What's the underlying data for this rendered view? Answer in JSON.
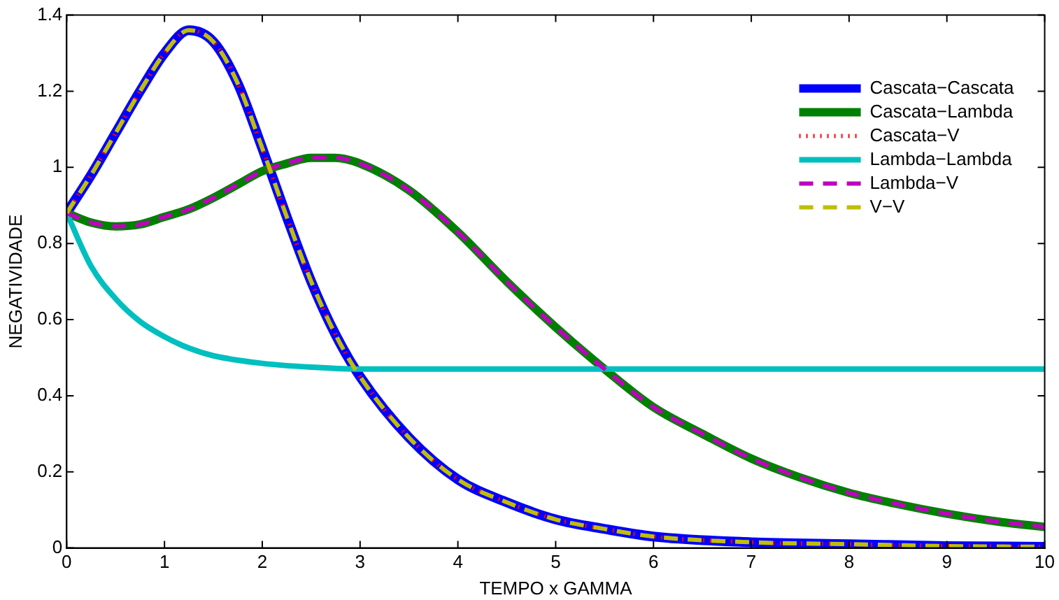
{
  "chart_data": {
    "type": "line",
    "xlabel": "TEMPO x GAMMA",
    "ylabel": "NEGATIVIDADE",
    "xlim": [
      0,
      10
    ],
    "ylim": [
      0,
      1.4
    ],
    "xticks": [
      0,
      1,
      2,
      3,
      4,
      5,
      6,
      7,
      8,
      9,
      10
    ],
    "yticks": [
      0,
      0.2,
      0.4,
      0.6,
      0.8,
      1,
      1.2,
      1.4
    ],
    "grid": false,
    "legend": "top right",
    "marker": "none",
    "series": [
      {
        "name": "Cascata−Cascata",
        "color": "#0000ff",
        "line_style": "solid",
        "x": [
          0,
          0.25,
          0.5,
          0.75,
          1,
          1.25,
          1.5,
          1.75,
          2,
          2.25,
          2.5,
          2.75,
          3,
          3.5,
          4,
          4.5,
          5,
          5.5,
          6,
          7,
          8,
          9,
          10
        ],
        "values": [
          0.88,
          0.98,
          1.09,
          1.2,
          1.3,
          1.36,
          1.33,
          1.22,
          1.05,
          0.87,
          0.7,
          0.56,
          0.45,
          0.29,
          0.18,
          0.12,
          0.075,
          0.05,
          0.03,
          0.015,
          0.01,
          0.005,
          0.003
        ]
      },
      {
        "name": "Cascata−Lambda",
        "color": "#008000",
        "line_style": "solid",
        "x": [
          0,
          0.25,
          0.5,
          0.75,
          1,
          1.25,
          1.5,
          1.75,
          2,
          2.25,
          2.5,
          2.75,
          3,
          3.5,
          4,
          4.5,
          5,
          5.5,
          6,
          6.5,
          7,
          7.5,
          8,
          8.5,
          9,
          9.5,
          10
        ],
        "values": [
          0.88,
          0.855,
          0.845,
          0.85,
          0.87,
          0.89,
          0.92,
          0.955,
          0.99,
          1.01,
          1.025,
          1.025,
          1.01,
          0.94,
          0.83,
          0.7,
          0.58,
          0.47,
          0.37,
          0.3,
          0.235,
          0.185,
          0.145,
          0.115,
          0.09,
          0.07,
          0.055
        ]
      },
      {
        "name": "Cascata−V",
        "color": "#ff0000",
        "line_style": "dotted",
        "x": [
          0,
          0.25,
          0.5,
          0.75,
          1,
          1.25,
          1.5,
          1.75,
          2,
          2.25,
          2.5,
          2.75,
          3,
          3.5,
          4,
          4.5,
          5,
          5.5,
          6,
          7,
          8,
          9,
          10
        ],
        "values": [
          0.88,
          0.98,
          1.09,
          1.2,
          1.3,
          1.36,
          1.33,
          1.22,
          1.05,
          0.87,
          0.7,
          0.56,
          0.45,
          0.29,
          0.18,
          0.12,
          0.075,
          0.05,
          0.03,
          0.015,
          0.01,
          0.005,
          0.003
        ]
      },
      {
        "name": "Lambda−Lambda",
        "color": "#00bfbf",
        "line_style": "solid",
        "x": [
          0,
          0.25,
          0.5,
          0.75,
          1,
          1.25,
          1.5,
          2,
          2.5,
          3,
          10
        ],
        "values": [
          0.88,
          0.74,
          0.655,
          0.595,
          0.555,
          0.525,
          0.505,
          0.485,
          0.475,
          0.47,
          0.47
        ]
      },
      {
        "name": "Lambda−V",
        "color": "#bf00bf",
        "line_style": "dashed",
        "x": [
          0,
          0.25,
          0.5,
          0.75,
          1,
          1.25,
          1.5,
          1.75,
          2,
          2.25,
          2.5,
          2.75,
          3,
          3.5,
          4,
          4.5,
          5,
          5.5,
          6,
          6.5,
          7,
          7.5,
          8,
          8.5,
          9,
          9.5,
          10
        ],
        "values": [
          0.88,
          0.855,
          0.845,
          0.85,
          0.87,
          0.89,
          0.92,
          0.955,
          0.99,
          1.01,
          1.025,
          1.025,
          1.01,
          0.94,
          0.83,
          0.7,
          0.58,
          0.47,
          0.37,
          0.3,
          0.235,
          0.185,
          0.145,
          0.115,
          0.09,
          0.07,
          0.055
        ]
      },
      {
        "name": "V−V",
        "color": "#bfbf00",
        "line_style": "dashed",
        "x": [
          0,
          0.25,
          0.5,
          0.75,
          1,
          1.25,
          1.5,
          1.75,
          2,
          2.25,
          2.5,
          2.75,
          3,
          3.5,
          4,
          4.5,
          5,
          5.5,
          6,
          7,
          8,
          9,
          10
        ],
        "values": [
          0.88,
          0.98,
          1.09,
          1.2,
          1.3,
          1.36,
          1.33,
          1.22,
          1.05,
          0.87,
          0.7,
          0.56,
          0.45,
          0.29,
          0.18,
          0.12,
          0.075,
          0.05,
          0.03,
          0.015,
          0.01,
          0.005,
          0.003
        ]
      }
    ]
  }
}
